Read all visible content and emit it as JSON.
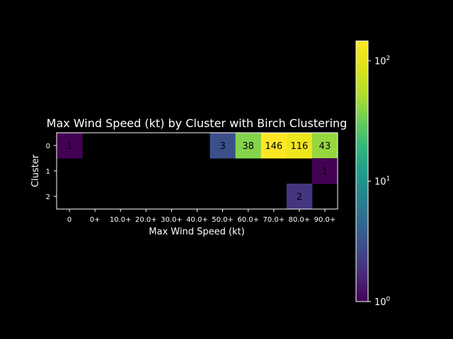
{
  "chart_data": {
    "type": "heatmap",
    "title": "Max Wind Speed (kt) by Cluster with Birch Clustering",
    "xlabel": "Max Wind Speed (kt)",
    "ylabel": "Cluster",
    "x_categories": [
      "0",
      "0+",
      "10.0+",
      "20.0+",
      "30.0+",
      "40.0+",
      "50.0+",
      "60.0+",
      "70.0+",
      "80.0+",
      "90.0+"
    ],
    "y_categories": [
      "0",
      "1",
      "2"
    ],
    "cells": [
      {
        "row": 0,
        "col": 0,
        "value": 1,
        "label": "1"
      },
      {
        "row": 0,
        "col": 6,
        "value": 3,
        "label": "3"
      },
      {
        "row": 0,
        "col": 7,
        "value": 38,
        "label": "38"
      },
      {
        "row": 0,
        "col": 8,
        "value": 146,
        "label": "146"
      },
      {
        "row": 0,
        "col": 9,
        "value": 116,
        "label": "116"
      },
      {
        "row": 0,
        "col": 10,
        "value": 43,
        "label": "43"
      },
      {
        "row": 1,
        "col": 10,
        "value": 1,
        "label": "1"
      },
      {
        "row": 2,
        "col": 9,
        "value": 2,
        "label": "2"
      }
    ],
    "colorbar": {
      "scale": "log",
      "colormap": "viridis",
      "range": [
        1,
        146
      ],
      "ticks": [
        {
          "value": 1,
          "base": "10",
          "exp": "0"
        },
        {
          "value": 10,
          "base": "10",
          "exp": "1"
        },
        {
          "value": 100,
          "base": "10",
          "exp": "2"
        }
      ]
    },
    "background_color": "#000000",
    "text_color": "#ffffff",
    "grid": false,
    "legend": "none"
  }
}
